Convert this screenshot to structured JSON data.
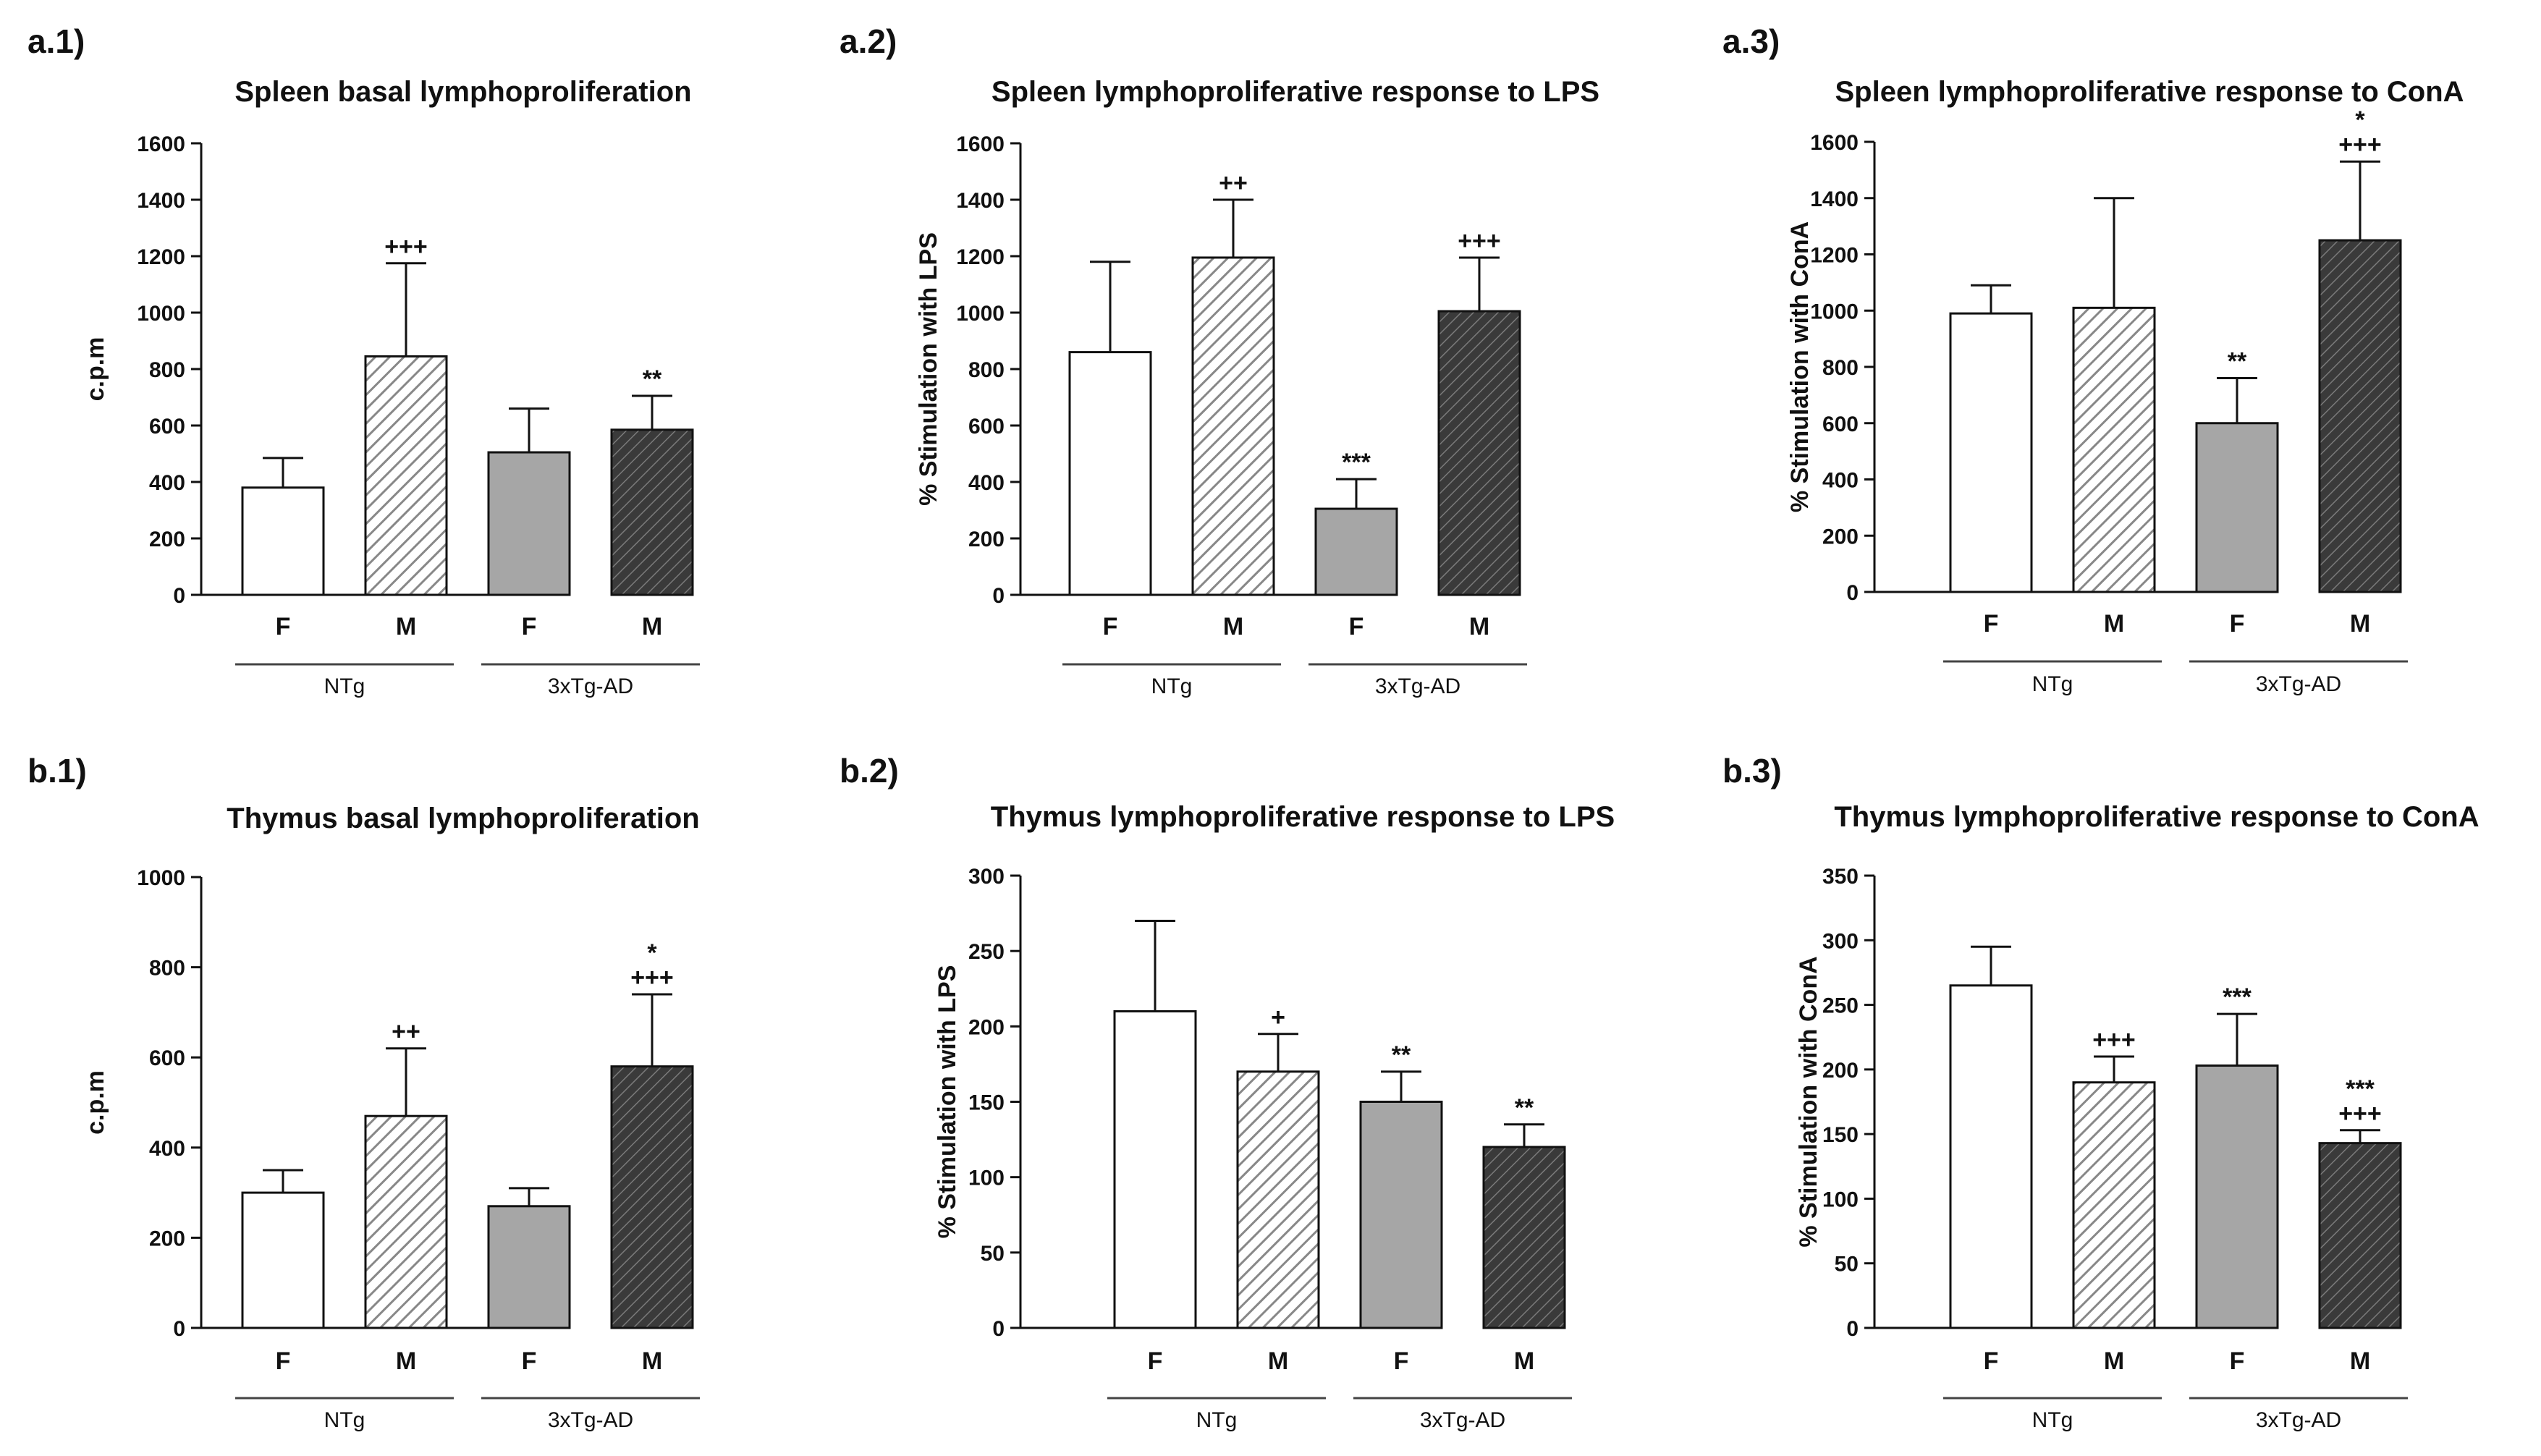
{
  "figure": {
    "colors": {
      "F_NTg": "#ffffff",
      "M_NTg": "hatch-light",
      "F_3xTg": "#a6a6a6",
      "M_3xTg": "hatch-dark",
      "stroke": "#111111"
    },
    "groups": [
      "NTg",
      "3xTg-AD"
    ]
  },
  "chart_data": [
    {
      "panel_label": "a.1)",
      "type": "bar",
      "title": "Spleen basal lymphoproliferation",
      "ylabel": "c.p.m",
      "xlabel": "",
      "ylim": [
        0,
        1600
      ],
      "yticks": [
        0,
        200,
        400,
        600,
        800,
        1000,
        1200,
        1400,
        1600
      ],
      "categories": [
        "F",
        "M",
        "F",
        "M"
      ],
      "groups": [
        "NTg",
        "3xTg-AD"
      ],
      "values": [
        380,
        845,
        505,
        585
      ],
      "errors": [
        105,
        330,
        155,
        120
      ],
      "annotations": [
        [],
        [
          "+++"
        ],
        [],
        [
          "**"
        ]
      ]
    },
    {
      "panel_label": "a.2)",
      "type": "bar",
      "title": "Spleen lymphoproliferative response to LPS",
      "ylabel": "% Stimulation with LPS",
      "xlabel": "",
      "ylim": [
        0,
        1600
      ],
      "yticks": [
        0,
        200,
        400,
        600,
        800,
        1000,
        1200,
        1400,
        1600
      ],
      "categories": [
        "F",
        "M",
        "F",
        "M"
      ],
      "groups": [
        "NTg",
        "3xTg-AD"
      ],
      "values": [
        860,
        1195,
        305,
        1005
      ],
      "errors": [
        320,
        205,
        105,
        190
      ],
      "annotations": [
        [],
        [
          "++"
        ],
        [
          "***"
        ],
        [
          "+++"
        ]
      ]
    },
    {
      "panel_label": "a.3)",
      "type": "bar",
      "title": "Spleen lymphoproliferative response to ConA",
      "ylabel": "% Stimulation with ConA",
      "xlabel": "",
      "ylim": [
        0,
        1600
      ],
      "yticks": [
        0,
        200,
        400,
        600,
        800,
        1000,
        1200,
        1400,
        1600
      ],
      "categories": [
        "F",
        "M",
        "F",
        "M"
      ],
      "groups": [
        "NTg",
        "3xTg-AD"
      ],
      "values": [
        990,
        1010,
        600,
        1250
      ],
      "errors": [
        100,
        390,
        160,
        280
      ],
      "annotations": [
        [],
        [],
        [
          "**"
        ],
        [
          "*",
          "+++"
        ]
      ]
    },
    {
      "panel_label": "b.1)",
      "type": "bar",
      "title": "Thymus basal lymphoproliferation",
      "ylabel": "c.p.m",
      "xlabel": "",
      "ylim": [
        0,
        1000
      ],
      "yticks": [
        0,
        200,
        400,
        600,
        800,
        1000
      ],
      "categories": [
        "F",
        "M",
        "F",
        "M"
      ],
      "groups": [
        "NTg",
        "3xTg-AD"
      ],
      "values": [
        300,
        470,
        270,
        580
      ],
      "errors": [
        50,
        150,
        40,
        160
      ],
      "annotations": [
        [],
        [
          "++"
        ],
        [],
        [
          "*",
          "+++"
        ]
      ]
    },
    {
      "panel_label": "b.2)",
      "type": "bar",
      "title": "Thymus lymphoproliferative response to LPS",
      "ylabel": "% Stimulation with LPS",
      "xlabel": "",
      "ylim": [
        0,
        300
      ],
      "yticks": [
        0,
        50,
        100,
        150,
        200,
        250,
        300
      ],
      "categories": [
        "F",
        "M",
        "F",
        "M"
      ],
      "groups": [
        "NTg",
        "3xTg-AD"
      ],
      "values": [
        210,
        170,
        150,
        120
      ],
      "errors": [
        60,
        25,
        20,
        15
      ],
      "annotations": [
        [],
        [
          "+"
        ],
        [
          "**"
        ],
        [
          "**"
        ]
      ]
    },
    {
      "panel_label": "b.3)",
      "type": "bar",
      "title": "Thymus lymphoproliferative response to ConA",
      "ylabel": "% Stimulation with ConA",
      "xlabel": "",
      "ylim": [
        0,
        350
      ],
      "yticks": [
        0,
        50,
        100,
        150,
        200,
        250,
        300,
        350
      ],
      "categories": [
        "F",
        "M",
        "F",
        "M"
      ],
      "groups": [
        "NTg",
        "3xTg-AD"
      ],
      "values": [
        265,
        190,
        203,
        143
      ],
      "errors": [
        30,
        20,
        40,
        10
      ],
      "annotations": [
        [],
        [
          "+++"
        ],
        [
          "***"
        ],
        [
          "***",
          "+++"
        ]
      ]
    }
  ]
}
